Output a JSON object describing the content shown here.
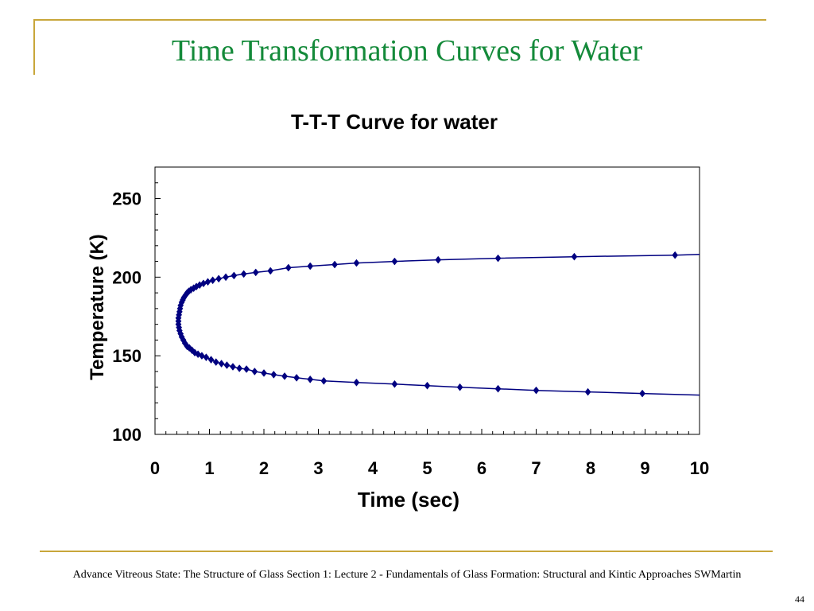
{
  "slide": {
    "title": "Time Transformation Curves for Water",
    "footer": "Advance Vitreous State: The Structure of Glass Section 1: Lecture 2 - Fundamentals of Glass Formation: Structural and Kintic Approaches SWMartin",
    "page_number": "44",
    "accent_color": "#c8a63a",
    "title_color": "#148a3a"
  },
  "chart_data": {
    "type": "scatter",
    "title": "T-T-T Curve for water",
    "xlabel": "Time (sec)",
    "ylabel": "Temperature (K)",
    "xlim": [
      0,
      10
    ],
    "ylim": [
      100,
      270
    ],
    "xticks": [
      0,
      1,
      2,
      3,
      4,
      5,
      6,
      7,
      8,
      9,
      10
    ],
    "yticks": [
      100,
      150,
      200,
      250
    ],
    "grid": false,
    "line_color": "#000080",
    "series": [
      {
        "x": [
          0.43,
          0.43,
          0.44,
          0.45,
          0.46,
          0.47,
          0.49,
          0.51,
          0.53,
          0.56,
          0.59,
          0.62,
          0.66,
          0.71,
          0.76,
          0.82,
          0.89,
          0.97,
          1.06,
          1.17,
          1.3,
          1.45,
          1.63,
          1.85,
          2.12,
          2.45,
          2.85,
          3.3,
          3.7,
          4.4,
          5.2,
          6.3,
          7.7,
          9.55,
          10.0
        ],
        "y": [
          172,
          174,
          176,
          178,
          180,
          182,
          184,
          185.5,
          187,
          188.5,
          190,
          191,
          192,
          193,
          194,
          195,
          196,
          197,
          198,
          199,
          200,
          201,
          202,
          203,
          204,
          206,
          207,
          208,
          209,
          210,
          211,
          212,
          213,
          214,
          214.5
        ]
      },
      {
        "x": [
          0.43,
          0.44,
          0.45,
          0.47,
          0.49,
          0.52,
          0.55,
          0.59,
          0.63,
          0.68,
          0.73,
          0.79,
          0.86,
          0.94,
          1.03,
          1.12,
          1.22,
          1.32,
          1.43,
          1.55,
          1.68,
          1.83,
          2.0,
          2.18,
          2.38,
          2.6,
          2.85,
          3.1,
          3.7,
          4.4,
          5.0,
          5.6,
          6.3,
          7.0,
          7.95,
          8.95,
          10.0
        ],
        "y": [
          170,
          168,
          166,
          164,
          162,
          160,
          158,
          156,
          155,
          153.5,
          152,
          151,
          150,
          149,
          147.5,
          146,
          145,
          144,
          143,
          142,
          141.5,
          140,
          139,
          138,
          137,
          136,
          135,
          134,
          133,
          132,
          131,
          130,
          129,
          128,
          127,
          126,
          125
        ]
      }
    ]
  }
}
